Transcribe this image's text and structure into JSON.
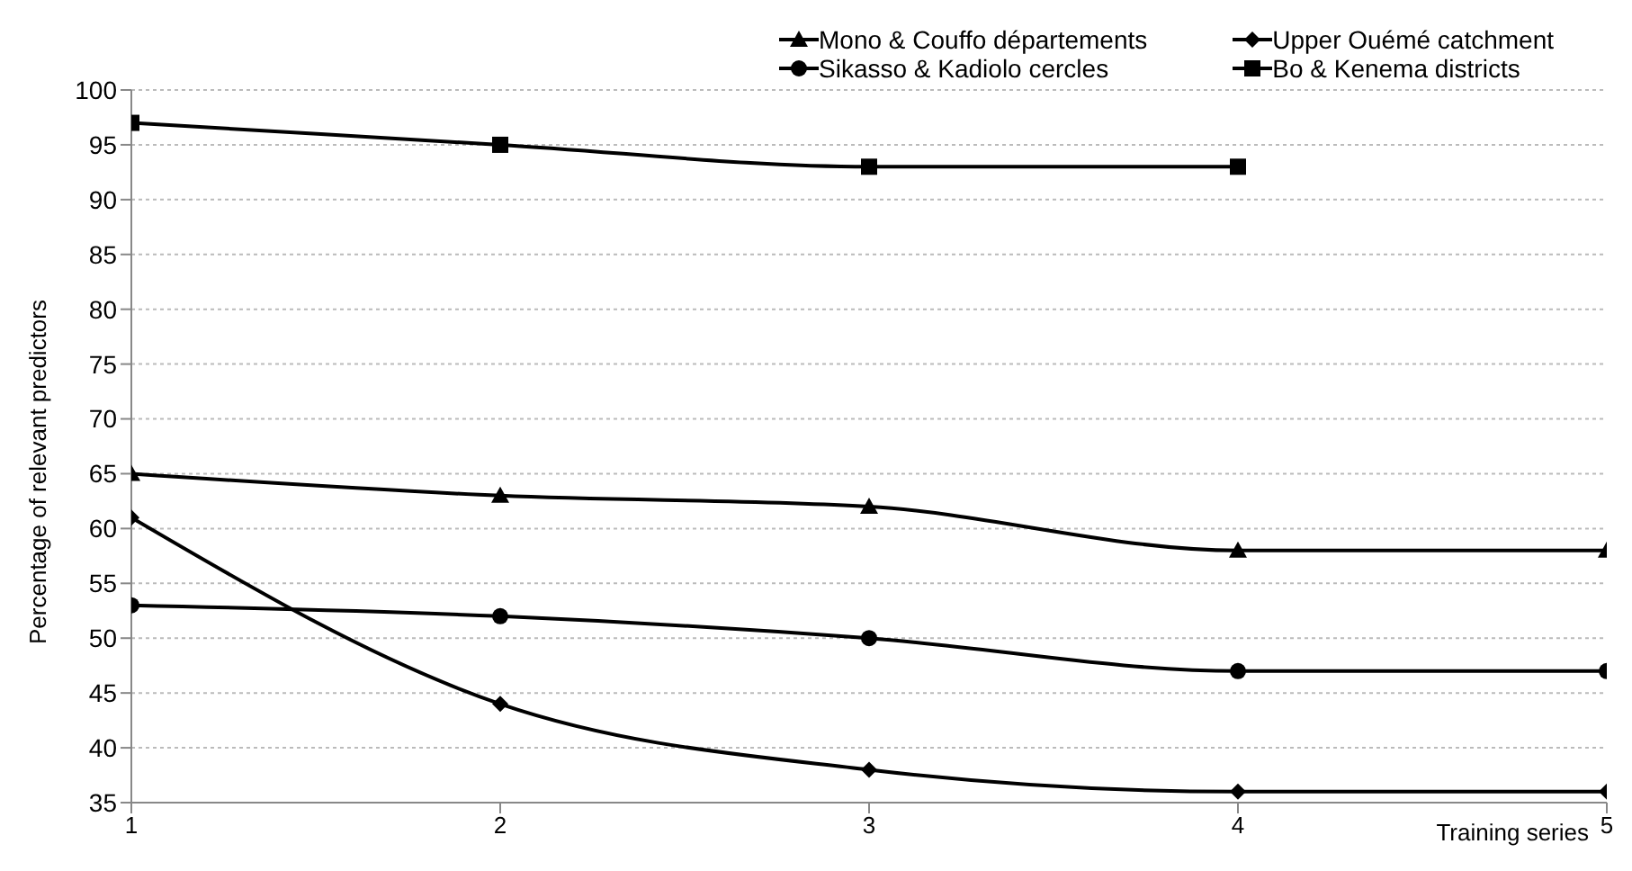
{
  "chart_data": {
    "type": "line",
    "xlabel": "Training series",
    "ylabel": "Percentage of relevant predictors",
    "x": [
      1,
      2,
      3,
      4,
      5
    ],
    "series": [
      {
        "name": "Mono & Couffo départements",
        "color": "#000000",
        "marker": "triangle",
        "values": [
          65,
          63,
          62,
          58,
          58
        ]
      },
      {
        "name": "Upper Ouémé catchment",
        "color": "#000000",
        "marker": "diamond",
        "values": [
          61,
          44,
          38,
          36,
          36
        ]
      },
      {
        "name": "Sikasso & Kadiolo cercles",
        "color": "#000000",
        "marker": "circle",
        "values": [
          53,
          52,
          50,
          47,
          47
        ]
      },
      {
        "name": "Bo & Kenema districts",
        "color": "#000000",
        "marker": "square",
        "values": [
          97,
          95,
          93,
          93,
          null
        ]
      }
    ],
    "xlim": [
      1,
      5
    ],
    "xticks": [
      1,
      2,
      3,
      4,
      5
    ],
    "ylim": [
      35,
      100
    ],
    "yticks": [
      35,
      40,
      45,
      50,
      55,
      60,
      65,
      70,
      75,
      80,
      85,
      90,
      95,
      100
    ],
    "grid": "y",
    "legend": "top right",
    "line_style": "solid"
  }
}
